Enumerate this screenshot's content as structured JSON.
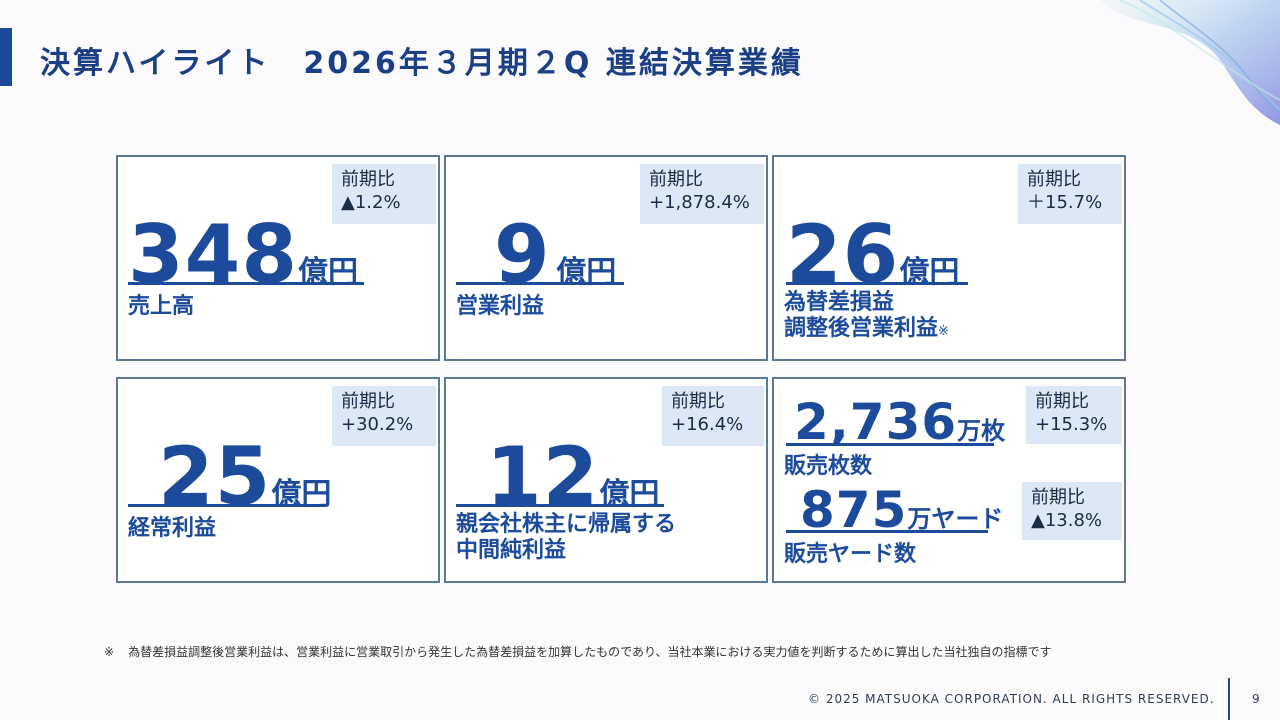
{
  "title": "決算ハイライト　2026年３月期２Q 連結決算業績",
  "cards": [
    {
      "badge_label": "前期比",
      "change": "▲1.2%",
      "value": "348",
      "unit": "億円",
      "label_lines": [
        "売上高"
      ]
    },
    {
      "badge_label": "前期比",
      "change": "+1,878.4%",
      "value": "9",
      "unit": "億円",
      "label_lines": [
        "営業利益"
      ]
    },
    {
      "badge_label": "前期比",
      "change": "＋15.7%",
      "value": "26",
      "unit": "億円",
      "label_lines": [
        "為替差損益",
        "調整後営業利益"
      ],
      "label_mark": "※"
    },
    {
      "badge_label": "前期比",
      "change": "+30.2%",
      "value": "25",
      "unit": "億円",
      "label_lines": [
        "経常利益"
      ]
    },
    {
      "badge_label": "前期比",
      "change": "+16.4%",
      "value": "12",
      "unit": "億円",
      "label_lines": [
        "親会社株主に帰属する",
        "中間純利益"
      ]
    }
  ],
  "sales_card": {
    "items": [
      {
        "badge_label": "前期比",
        "change": "+15.3%",
        "value": "2,736",
        "unit": "万枚",
        "label": "販売枚数"
      },
      {
        "badge_label": "前期比",
        "change": "▲13.8%",
        "value": "875",
        "unit": "万ヤード",
        "label": "販売ヤード数"
      }
    ]
  },
  "footnote": {
    "symbol": "※",
    "text": "為替差損益調整後営業利益は、営業利益に営業取引から発生した為替差損益を加算したものであり、当社本業における実力値を判断するために算出した当社独自の指標です"
  },
  "footer": {
    "copyright": "© 2025 MATSUOKA CORPORATION. ALL RIGHTS RESERVED.",
    "page_number": "9"
  },
  "colors": {
    "accent": "#1b4a9a",
    "figure": "#1c4b9c",
    "badge_bg": "#dce8f5",
    "card_border": "#5b7896"
  }
}
